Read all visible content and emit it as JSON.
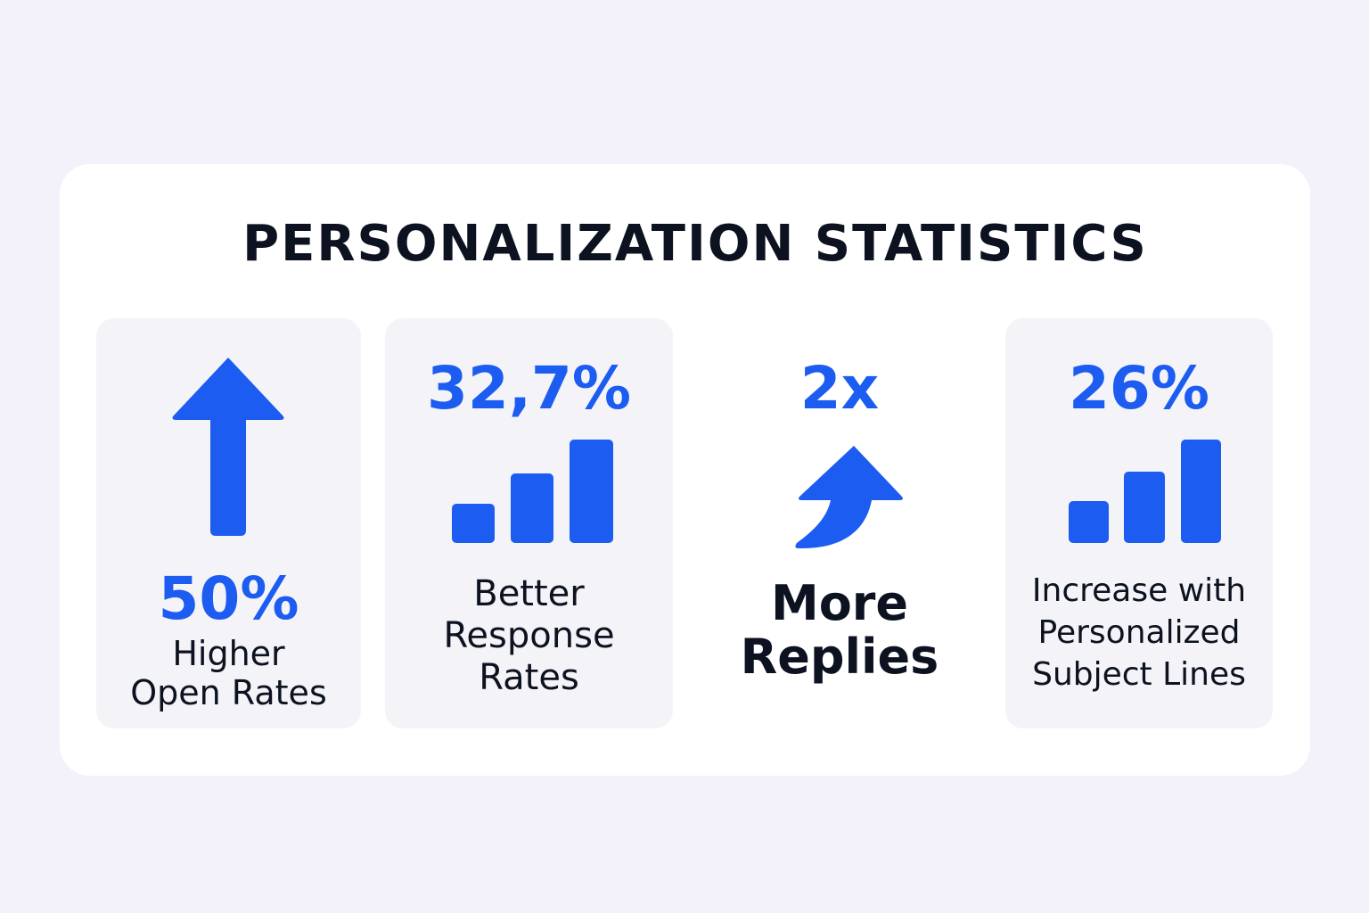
{
  "title": "PERSONALIZATION STATISTICS",
  "accent_color": "#1d5cf0",
  "stats": [
    {
      "value": "50%",
      "label_lines": [
        "Higher",
        "Open Rates"
      ],
      "icon": "arrow-up-icon"
    },
    {
      "value": "32,7%",
      "label_lines": [
        "Better",
        "Response",
        "Rates"
      ],
      "icon": "bar-chart-icon"
    },
    {
      "value": "2x",
      "label_lines": [
        "More",
        "Replies"
      ],
      "icon": "curved-arrow-up-icon"
    },
    {
      "value": "26%",
      "label_lines": [
        "Increase with",
        "Personalized",
        "Subject Lines"
      ],
      "icon": "bar-chart-icon"
    }
  ]
}
